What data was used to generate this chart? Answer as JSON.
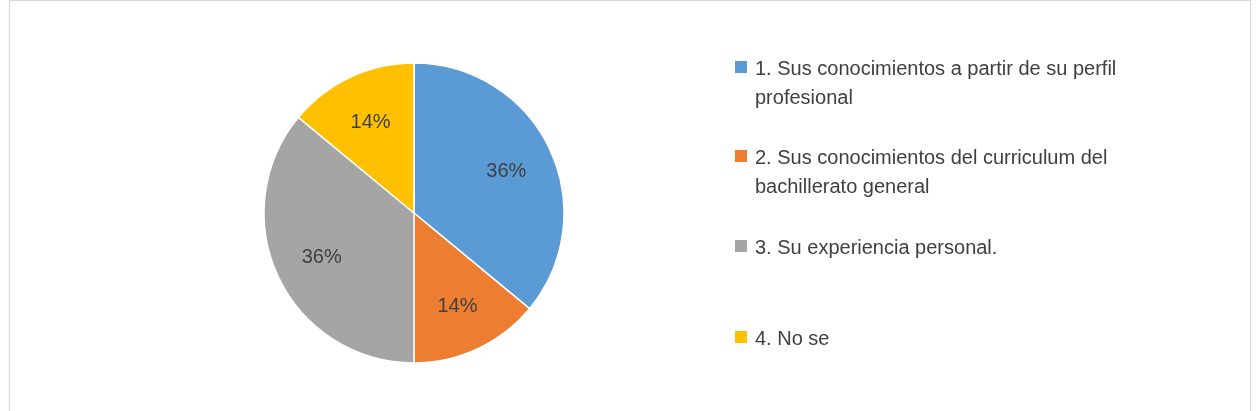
{
  "chart_data": {
    "type": "pie",
    "categories": [
      "1. Sus conocimientos a partir de su perfil profesional",
      "2. Sus conocimientos del curriculum del bachillerato general",
      "3. Su experiencia personal.",
      "4. No se"
    ],
    "values": [
      36,
      14,
      36,
      14
    ],
    "value_labels": [
      "36%",
      "14%",
      "36%",
      "14%"
    ],
    "colors": [
      "#5b9bd5",
      "#ed7d31",
      "#a5a5a5",
      "#ffc000"
    ],
    "legend": "right"
  }
}
